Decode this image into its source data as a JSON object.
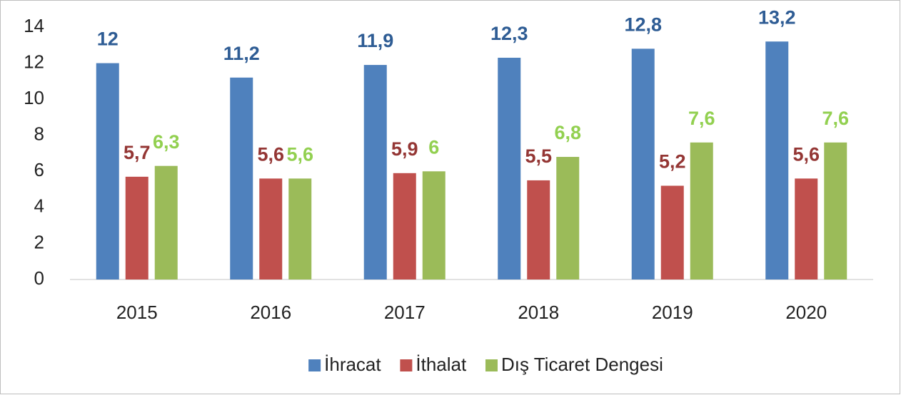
{
  "chart_data": {
    "type": "bar",
    "categories": [
      "2015",
      "2016",
      "2017",
      "2018",
      "2019",
      "2020"
    ],
    "series": [
      {
        "name": "İhracat",
        "color": "#4f81bd",
        "label_color": "#2e5c94",
        "values": [
          12,
          11.2,
          11.9,
          12.3,
          12.8,
          13.2
        ],
        "value_labels": [
          "12",
          "11,2",
          "11,9",
          "12,3",
          "12,8",
          "13,2"
        ]
      },
      {
        "name": "İthalat",
        "color": "#c0504d",
        "label_color": "#943634",
        "values": [
          5.7,
          5.6,
          5.9,
          5.5,
          5.2,
          5.6
        ],
        "value_labels": [
          "5,7",
          "5,6",
          "5,9",
          "5,5",
          "5,2",
          "5,6"
        ]
      },
      {
        "name": "Dış Ticaret Dengesi",
        "color": "#9bbb59",
        "label_color": "#92d050",
        "values": [
          6.3,
          5.6,
          6,
          6.8,
          7.6,
          7.6
        ],
        "value_labels": [
          "6,3",
          "5,6",
          "6",
          "6,8",
          "7,6",
          "7,6"
        ]
      }
    ],
    "ylim": [
      0,
      14
    ],
    "yticks": [
      0,
      2,
      4,
      6,
      8,
      10,
      12,
      14
    ],
    "grid": false,
    "legend": "bottom"
  }
}
